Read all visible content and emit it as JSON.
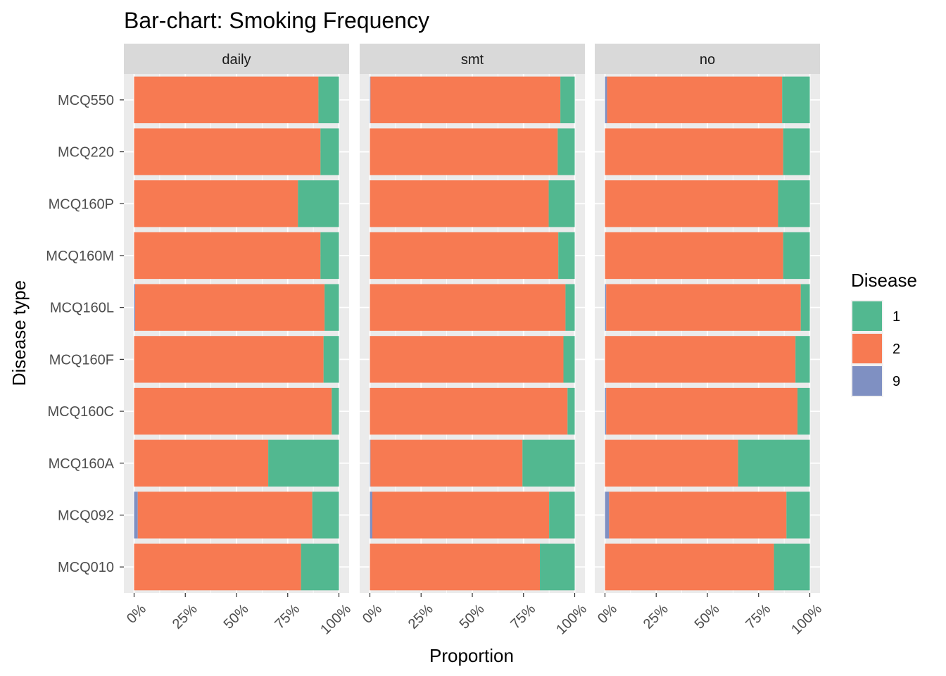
{
  "chart_data": {
    "type": "bar",
    "orientation": "horizontal",
    "stacked": "proportion",
    "title": "Bar-chart: Smoking Frequency",
    "xlabel": "Proportion",
    "ylabel": "Disease type",
    "xlim": [
      0,
      1
    ],
    "x_ticks": [
      "0%",
      "25%",
      "50%",
      "75%",
      "100%"
    ],
    "x_tick_values": [
      0,
      0.25,
      0.5,
      0.75,
      1
    ],
    "categories": [
      "MCQ550",
      "MCQ220",
      "MCQ160P",
      "MCQ160M",
      "MCQ160L",
      "MCQ160F",
      "MCQ160C",
      "MCQ160A",
      "MCQ092",
      "MCQ010"
    ],
    "legend": {
      "title": "Disease",
      "position": "right",
      "entries": [
        {
          "label": "1",
          "color": "#52b890"
        },
        {
          "label": "2",
          "color": "#f77a52"
        },
        {
          "label": "9",
          "color": "#7f90c2"
        }
      ]
    },
    "stack_order": [
      "9",
      "2",
      "1"
    ],
    "panels": [
      {
        "label": "daily",
        "series": [
          {
            "name": "9",
            "values": [
              0.0,
              0.0,
              0.0,
              0.0,
              0.005,
              0.0,
              0.0,
              0.0,
              0.018,
              0.0
            ]
          },
          {
            "name": "2",
            "values": [
              0.9,
              0.91,
              0.8,
              0.91,
              0.925,
              0.925,
              0.965,
              0.655,
              0.852,
              0.815
            ]
          },
          {
            "name": "1",
            "values": [
              0.1,
              0.09,
              0.2,
              0.09,
              0.07,
              0.075,
              0.035,
              0.345,
              0.13,
              0.185
            ]
          }
        ]
      },
      {
        "label": "smt",
        "series": [
          {
            "name": "9",
            "values": [
              0.003,
              0.0,
              0.0,
              0.0,
              0.0,
              0.0,
              0.0,
              0.003,
              0.012,
              0.0
            ]
          },
          {
            "name": "2",
            "values": [
              0.927,
              0.917,
              0.873,
              0.92,
              0.955,
              0.945,
              0.965,
              0.742,
              0.863,
              0.83
            ]
          },
          {
            "name": "1",
            "values": [
              0.07,
              0.083,
              0.127,
              0.08,
              0.045,
              0.055,
              0.035,
              0.255,
              0.125,
              0.17
            ]
          }
        ]
      },
      {
        "label": "no",
        "series": [
          {
            "name": "9",
            "values": [
              0.01,
              0.0,
              0.0,
              0.0,
              0.006,
              0.0,
              0.006,
              0.0,
              0.02,
              0.0
            ]
          },
          {
            "name": "2",
            "values": [
              0.855,
              0.87,
              0.845,
              0.87,
              0.95,
              0.93,
              0.934,
              0.65,
              0.866,
              0.825
            ]
          },
          {
            "name": "1",
            "values": [
              0.135,
              0.13,
              0.155,
              0.13,
              0.044,
              0.07,
              0.06,
              0.35,
              0.114,
              0.175
            ]
          }
        ]
      }
    ]
  }
}
